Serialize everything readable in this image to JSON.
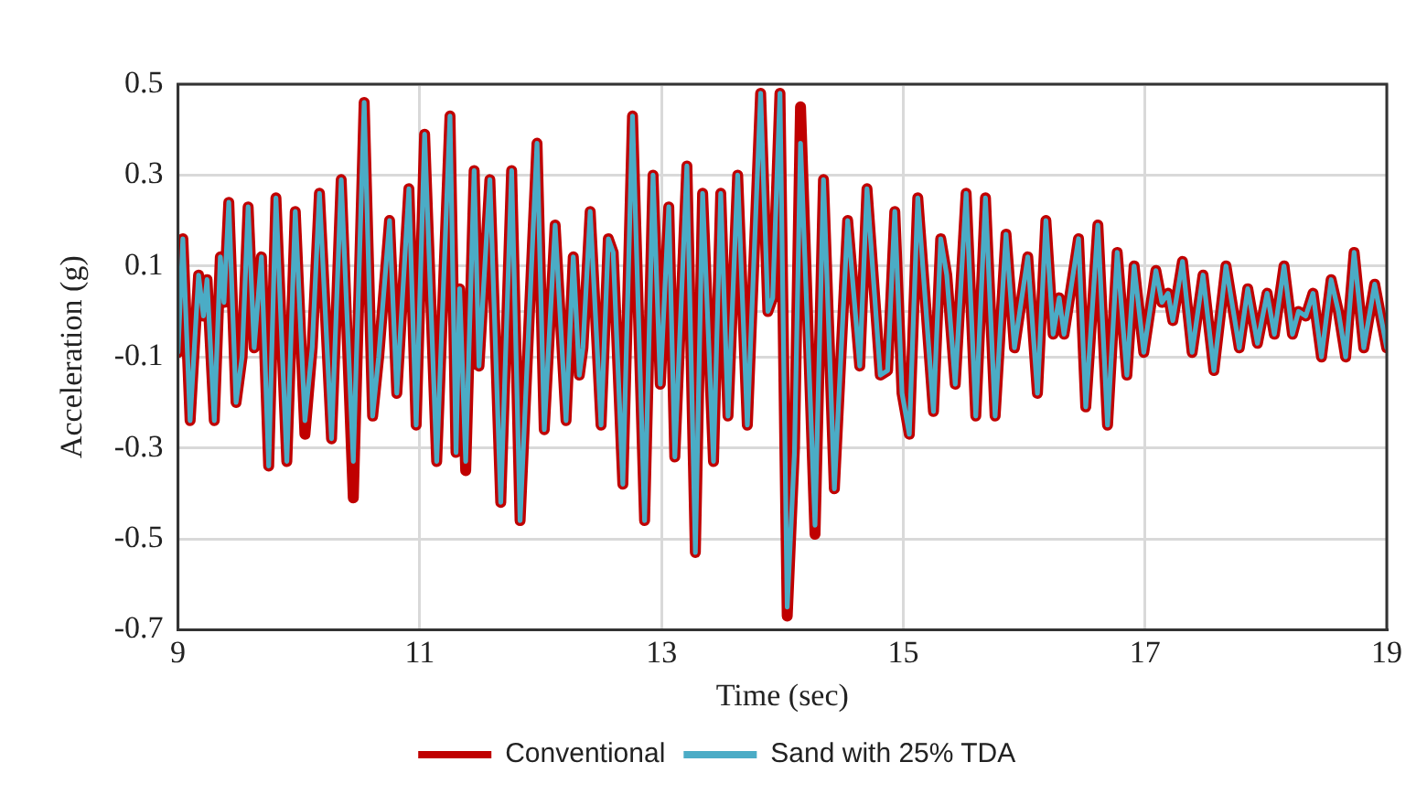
{
  "chart_data": {
    "type": "line",
    "xlabel": "Time (sec)",
    "ylabel": "Acceleration (g)",
    "xlim": [
      9,
      19
    ],
    "xticks": [
      9,
      11,
      13,
      15,
      17,
      19
    ],
    "ylim": [
      -0.7,
      0.5
    ],
    "yticks": [
      -0.7,
      -0.5,
      -0.3,
      -0.1,
      {
        "value": 0,
        "label": null
      },
      0.1,
      0.3,
      0.5
    ],
    "grid": true,
    "legend": "bottom",
    "marker": "none",
    "line_style": "solid",
    "x": [
      9.0,
      9.04,
      9.1,
      9.17,
      9.21,
      9.24,
      9.3,
      9.35,
      9.38,
      9.42,
      9.48,
      9.53,
      9.58,
      9.63,
      9.69,
      9.75,
      9.81,
      9.9,
      9.97,
      10.05,
      10.11,
      10.17,
      10.27,
      10.35,
      10.45,
      10.54,
      10.61,
      10.66,
      10.75,
      10.81,
      10.91,
      10.97,
      11.04,
      11.14,
      11.25,
      11.3,
      11.33,
      11.38,
      11.45,
      11.49,
      11.58,
      11.67,
      11.76,
      11.83,
      11.97,
      12.03,
      12.12,
      12.21,
      12.27,
      12.32,
      12.35,
      12.41,
      12.5,
      12.56,
      12.6,
      12.68,
      12.76,
      12.86,
      12.93,
      12.99,
      13.06,
      13.11,
      13.21,
      13.28,
      13.34,
      13.43,
      13.49,
      13.55,
      13.63,
      13.71,
      13.82,
      13.88,
      13.92,
      13.98,
      14.04,
      14.1,
      14.15,
      14.27,
      14.34,
      14.43,
      14.54,
      14.64,
      14.7,
      14.81,
      14.87,
      14.93,
      14.99,
      15.05,
      15.12,
      15.25,
      15.31,
      15.36,
      15.43,
      15.52,
      15.6,
      15.68,
      15.76,
      15.85,
      15.92,
      16.03,
      16.11,
      16.18,
      16.24,
      16.29,
      16.33,
      16.37,
      16.45,
      16.51,
      16.61,
      16.69,
      16.77,
      16.85,
      16.91,
      16.99,
      17.09,
      17.14,
      17.19,
      17.23,
      17.31,
      17.39,
      17.48,
      17.57,
      17.67,
      17.78,
      17.85,
      17.93,
      18.01,
      18.07,
      18.15,
      18.22,
      18.27,
      18.33,
      18.39,
      18.46,
      18.54,
      18.6,
      18.66,
      18.73,
      18.81,
      18.9,
      19.0
    ],
    "series": [
      {
        "name": "Conventional",
        "color": "#c00000",
        "values": [
          -0.09,
          0.16,
          -0.24,
          0.08,
          -0.01,
          0.07,
          -0.24,
          0.12,
          0.02,
          0.24,
          -0.2,
          -0.1,
          0.23,
          -0.08,
          0.12,
          -0.34,
          0.25,
          -0.33,
          0.22,
          -0.27,
          -0.08,
          0.26,
          -0.28,
          0.29,
          -0.41,
          0.46,
          -0.23,
          -0.1,
          0.2,
          -0.18,
          0.27,
          -0.25,
          0.39,
          -0.33,
          0.43,
          -0.31,
          0.05,
          -0.35,
          0.31,
          -0.12,
          0.29,
          -0.42,
          0.31,
          -0.46,
          0.37,
          -0.26,
          0.19,
          -0.24,
          0.12,
          -0.14,
          -0.08,
          0.22,
          -0.25,
          0.16,
          0.13,
          -0.38,
          0.43,
          -0.46,
          0.3,
          -0.16,
          0.23,
          -0.32,
          0.32,
          -0.53,
          0.26,
          -0.33,
          0.26,
          -0.23,
          0.3,
          -0.25,
          0.48,
          0.0,
          0.03,
          0.48,
          -0.67,
          -0.3,
          0.45,
          -0.49,
          0.29,
          -0.39,
          0.2,
          -0.12,
          0.27,
          -0.14,
          -0.13,
          0.22,
          -0.18,
          -0.27,
          0.25,
          -0.22,
          0.16,
          0.08,
          -0.16,
          0.26,
          -0.23,
          0.25,
          -0.23,
          0.17,
          -0.08,
          0.12,
          -0.18,
          0.2,
          -0.05,
          0.03,
          -0.05,
          0.02,
          0.16,
          -0.21,
          0.19,
          -0.25,
          0.13,
          -0.14,
          0.1,
          -0.09,
          0.09,
          0.02,
          0.04,
          -0.02,
          0.11,
          -0.09,
          0.08,
          -0.13,
          0.1,
          -0.08,
          0.05,
          -0.07,
          0.04,
          -0.05,
          0.1,
          -0.05,
          0.0,
          -0.01,
          0.04,
          -0.1,
          0.07,
          0.0,
          -0.1,
          0.13,
          -0.08,
          0.06,
          -0.08
        ]
      },
      {
        "name": "Sand with 25% TDA",
        "color": "#4bacc6",
        "values": [
          -0.09,
          0.16,
          -0.24,
          0.08,
          -0.01,
          0.07,
          -0.24,
          0.12,
          0.02,
          0.24,
          -0.2,
          -0.1,
          0.23,
          -0.08,
          0.12,
          -0.34,
          0.25,
          -0.33,
          0.22,
          -0.24,
          -0.08,
          0.26,
          -0.28,
          0.29,
          -0.33,
          0.46,
          -0.23,
          -0.1,
          0.2,
          -0.18,
          0.27,
          -0.25,
          0.39,
          -0.33,
          0.43,
          -0.31,
          0.05,
          -0.33,
          0.31,
          -0.12,
          0.29,
          -0.42,
          0.31,
          -0.46,
          0.37,
          -0.26,
          0.19,
          -0.24,
          0.12,
          -0.14,
          -0.08,
          0.22,
          -0.25,
          0.16,
          0.13,
          -0.38,
          0.43,
          -0.46,
          0.3,
          -0.16,
          0.23,
          -0.32,
          0.32,
          -0.53,
          0.26,
          -0.33,
          0.26,
          -0.23,
          0.3,
          -0.25,
          0.48,
          0.0,
          0.03,
          0.48,
          -0.65,
          -0.31,
          0.37,
          -0.47,
          0.29,
          -0.39,
          0.2,
          -0.12,
          0.27,
          -0.14,
          -0.13,
          0.22,
          -0.18,
          -0.27,
          0.25,
          -0.22,
          0.16,
          0.08,
          -0.16,
          0.26,
          -0.23,
          0.25,
          -0.23,
          0.17,
          -0.08,
          0.12,
          -0.18,
          0.2,
          -0.05,
          0.03,
          -0.05,
          0.02,
          0.16,
          -0.21,
          0.19,
          -0.25,
          0.13,
          -0.14,
          0.1,
          -0.09,
          0.09,
          0.02,
          0.04,
          -0.02,
          0.11,
          -0.09,
          0.08,
          -0.13,
          0.1,
          -0.08,
          0.05,
          -0.07,
          0.04,
          -0.05,
          0.1,
          -0.05,
          0.0,
          -0.01,
          0.04,
          -0.1,
          0.07,
          0.0,
          -0.1,
          0.13,
          -0.08,
          0.06,
          -0.08
        ]
      }
    ]
  }
}
